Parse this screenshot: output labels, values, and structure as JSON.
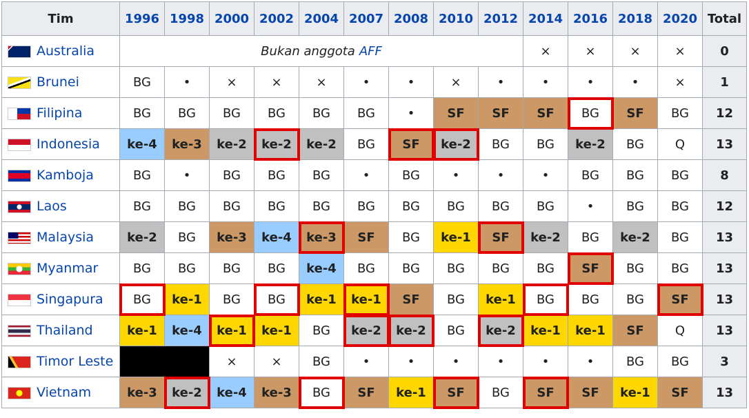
{
  "table": {
    "header": [
      "Tim",
      "1996",
      "1998",
      "2000",
      "2002",
      "2004",
      "2007",
      "2008",
      "2010",
      "2012",
      "2014",
      "2016",
      "2018",
      "2020",
      "Total"
    ],
    "result_colors": {
      "ke-1": "#ffd700",
      "ke-2": "#c0c0c0",
      "ke-3": "#cc9966",
      "ke-4": "#9acdff",
      "SF": "#cc9966"
    },
    "host_color": "#e00000",
    "rows": [
      {
        "team": "Australia",
        "cells": [
          {
            "text": "Bukan anggota",
            "link": "AFF",
            "span": 9
          },
          "×",
          "×",
          "×",
          "×"
        ],
        "total": 0
      },
      {
        "team": "Brunei",
        "cells": [
          "BG",
          "•",
          "×",
          "×",
          "×",
          "•",
          "•",
          "×",
          "•",
          "•",
          "•",
          "•",
          "×"
        ],
        "total": 1
      },
      {
        "team": "Filipina",
        "cells": [
          "BG",
          "BG",
          "BG",
          "BG",
          "BG",
          "BG",
          "•",
          "SF",
          "SF",
          "SF",
          {
            "text": "BG",
            "host": true
          },
          "SF",
          "BG"
        ],
        "total": 12
      },
      {
        "team": "Indonesia",
        "cells": [
          "ke-4",
          "ke-3",
          "ke-2",
          {
            "text": "ke-2",
            "host": true
          },
          "ke-2",
          "BG",
          {
            "text": "SF",
            "host": true
          },
          {
            "text": "ke-2",
            "host": true
          },
          "BG",
          "BG",
          "ke-2",
          "BG",
          "Q"
        ],
        "total": 13
      },
      {
        "team": "Kamboja",
        "cells": [
          "BG",
          "•",
          "BG",
          "BG",
          "BG",
          "•",
          "BG",
          "•",
          "•",
          "•",
          "BG",
          "BG",
          "BG"
        ],
        "total": 8
      },
      {
        "team": "Laos",
        "cells": [
          "BG",
          "BG",
          "BG",
          "BG",
          "BG",
          "BG",
          "BG",
          "BG",
          "BG",
          "BG",
          "•",
          "BG",
          "BG"
        ],
        "total": 12
      },
      {
        "team": "Malaysia",
        "cells": [
          "ke-2",
          "BG",
          "ke-3",
          "ke-4",
          {
            "text": "ke-3",
            "host": true
          },
          "SF",
          "BG",
          "ke-1",
          {
            "text": "SF",
            "host": true
          },
          "ke-2",
          "BG",
          "ke-2",
          "BG"
        ],
        "total": 13
      },
      {
        "team": "Myanmar",
        "cells": [
          "BG",
          "BG",
          "BG",
          "BG",
          "ke-4",
          "BG",
          "BG",
          "BG",
          "BG",
          "BG",
          {
            "text": "SF",
            "host": true
          },
          "BG",
          "BG"
        ],
        "total": 13
      },
      {
        "team": "Singapura",
        "cells": [
          {
            "text": "BG",
            "host": true
          },
          "ke-1",
          "BG",
          {
            "text": "BG",
            "host": true
          },
          "ke-1",
          {
            "text": "ke-1",
            "host": true
          },
          "SF",
          "BG",
          "ke-1",
          {
            "text": "BG",
            "host": true
          },
          "BG",
          "BG",
          {
            "text": "SF",
            "host": true
          }
        ],
        "total": 13
      },
      {
        "team": "Thailand",
        "cells": [
          "ke-1",
          "ke-4",
          {
            "text": "ke-1",
            "host": true
          },
          "ke-1",
          "BG",
          {
            "text": "ke-2",
            "host": true
          },
          {
            "text": "ke-2",
            "host": true
          },
          "BG",
          {
            "text": "ke-2",
            "host": true
          },
          "ke-1",
          "ke-1",
          "SF",
          "Q"
        ],
        "total": 13
      },
      {
        "team": "Timor Leste",
        "cells": [
          {
            "span": 2,
            "color": "#000000"
          },
          "×",
          "×",
          "BG",
          "•",
          "•",
          "•",
          "•",
          "•",
          "•",
          "BG",
          "BG"
        ],
        "total": 3
      },
      {
        "team": "Vietnam",
        "cells": [
          "ke-3",
          {
            "text": "ke-2",
            "host": true
          },
          "ke-4",
          "ke-3",
          {
            "text": "BG",
            "host": true
          },
          "SF",
          "ke-1",
          {
            "text": "SF",
            "host": true
          },
          "BG",
          {
            "text": "SF",
            "host": true
          },
          "SF",
          "ke-1",
          "SF"
        ],
        "total": 13
      }
    ]
  }
}
